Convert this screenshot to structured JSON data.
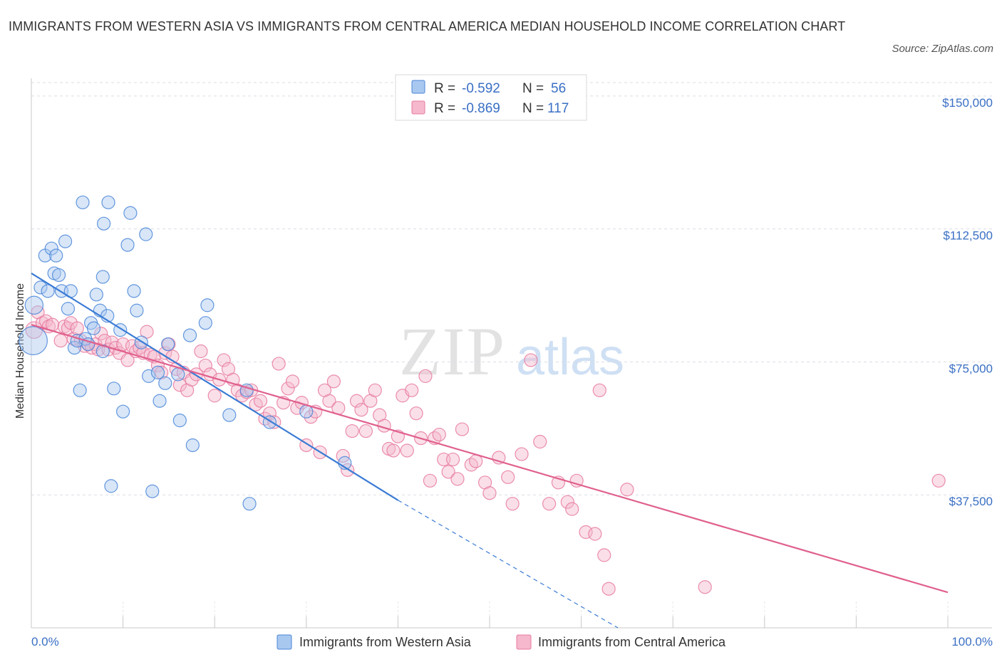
{
  "title": "IMMIGRANTS FROM WESTERN ASIA VS IMMIGRANTS FROM CENTRAL AMERICA MEDIAN HOUSEHOLD INCOME CORRELATION CHART",
  "source": "Source: ZipAtlas.com",
  "watermark": {
    "zip": "ZIP",
    "atlas": "atlas"
  },
  "colors": {
    "blue": "#4a86d8",
    "blue_fill": "#a9c8f0",
    "blue_line": "#3a7bd5",
    "pink": "#e87aa0",
    "pink_fill": "#f5b8cc",
    "pink_line": "#e0608e",
    "axis_label": "#3a6fc4",
    "grid": "#d8dde6"
  },
  "chart_data": {
    "type": "scatter",
    "xlabel": "",
    "ylabel": "Median Household Income",
    "xlim": [
      0,
      100
    ],
    "ylim": [
      0,
      155000
    ],
    "x_tick_labels": [
      "0.0%",
      "100.0%"
    ],
    "y_ticks": [
      37500,
      75000,
      112500,
      150000
    ],
    "y_tick_labels": [
      "$37,500",
      "$75,000",
      "$112,500",
      "$150,000"
    ],
    "legend_stats": [
      {
        "r_label": "R =",
        "r": "-0.592",
        "n_label": "N =",
        "n": "56",
        "series": "blue"
      },
      {
        "r_label": "R =",
        "r": "-0.869",
        "n_label": "N =",
        "n": "117",
        "series": "pink"
      }
    ],
    "series": [
      {
        "name": "Immigrants from Western Asia",
        "color": "blue",
        "trend": {
          "x0": 0,
          "y0": 100000,
          "x1": 40,
          "y1": 36000,
          "dashed_to_x": 64,
          "dashed_to_y": 0
        },
        "points": [
          [
            0.2,
            81000,
            2.2
          ],
          [
            0.3,
            91000,
            1.4
          ],
          [
            1,
            96000,
            1
          ],
          [
            1.5,
            105000,
            1
          ],
          [
            1.8,
            95000,
            1
          ],
          [
            2.2,
            107000,
            1
          ],
          [
            2.5,
            100000,
            1
          ],
          [
            2.7,
            105000,
            1
          ],
          [
            3,
            99500,
            1
          ],
          [
            3.3,
            95000,
            1
          ],
          [
            3.7,
            109000,
            1
          ],
          [
            4,
            90000,
            1
          ],
          [
            4.3,
            95000,
            1
          ],
          [
            4.7,
            79000,
            1
          ],
          [
            5,
            81000,
            1
          ],
          [
            5.3,
            67000,
            1
          ],
          [
            5.6,
            120000,
            1
          ],
          [
            5.9,
            81500,
            1
          ],
          [
            6.2,
            80000,
            1
          ],
          [
            6.5,
            86000,
            1
          ],
          [
            6.8,
            84500,
            1
          ],
          [
            7.1,
            94000,
            1
          ],
          [
            7.5,
            89500,
            1
          ],
          [
            7.8,
            78000,
            1
          ],
          [
            7.8,
            99000,
            1
          ],
          [
            7.9,
            114000,
            1
          ],
          [
            8.3,
            88000,
            1
          ],
          [
            8.4,
            120000,
            1
          ],
          [
            8.7,
            40000,
            1
          ],
          [
            9,
            67500,
            1
          ],
          [
            9.7,
            84000,
            1
          ],
          [
            10,
            61000,
            1
          ],
          [
            10.5,
            108000,
            1
          ],
          [
            10.8,
            117000,
            1
          ],
          [
            11.2,
            95000,
            1
          ],
          [
            11.5,
            89500,
            1
          ],
          [
            12,
            80500,
            1
          ],
          [
            12.5,
            111000,
            1
          ],
          [
            12.8,
            71000,
            1
          ],
          [
            13.2,
            38500,
            1
          ],
          [
            13.8,
            72000,
            1
          ],
          [
            14,
            64000,
            1
          ],
          [
            14.6,
            69000,
            1
          ],
          [
            14.9,
            80000,
            1
          ],
          [
            16,
            71500,
            1
          ],
          [
            16.2,
            58500,
            1
          ],
          [
            17.3,
            82500,
            1
          ],
          [
            17.6,
            51500,
            1
          ],
          [
            19,
            86000,
            1
          ],
          [
            19.2,
            91000,
            1
          ],
          [
            21.6,
            60000,
            1
          ],
          [
            23.5,
            67000,
            1
          ],
          [
            23.8,
            35000,
            1
          ],
          [
            26,
            58000,
            1
          ],
          [
            30,
            61000,
            1
          ],
          [
            34.2,
            46500,
            1
          ]
        ]
      },
      {
        "name": "Immigrants from Central America",
        "color": "pink",
        "trend": {
          "x0": 0,
          "y0": 85500,
          "x1": 100,
          "y1": 10000
        },
        "points": [
          [
            0.3,
            84000,
            1.3
          ],
          [
            0.7,
            89000,
            1
          ],
          [
            1.2,
            86000,
            1
          ],
          [
            1.6,
            86500,
            1
          ],
          [
            1.9,
            85000,
            1
          ],
          [
            2.3,
            85500,
            1
          ],
          [
            3.2,
            81000,
            1
          ],
          [
            3.6,
            85000,
            1
          ],
          [
            4,
            84500,
            1
          ],
          [
            4.3,
            86000,
            1
          ],
          [
            4.6,
            81500,
            1
          ],
          [
            5,
            84500,
            1
          ],
          [
            5.4,
            81000,
            1
          ],
          [
            5.8,
            79500,
            1
          ],
          [
            6.2,
            80000,
            1
          ],
          [
            6.6,
            79000,
            1
          ],
          [
            7,
            80000,
            1
          ],
          [
            7.3,
            78500,
            1
          ],
          [
            7.6,
            83000,
            1
          ],
          [
            8,
            81000,
            1
          ],
          [
            8.4,
            78500,
            1
          ],
          [
            8.8,
            80500,
            1
          ],
          [
            9.2,
            79000,
            1
          ],
          [
            9.6,
            77500,
            1
          ],
          [
            10,
            80000,
            1
          ],
          [
            10.5,
            75500,
            1
          ],
          [
            11,
            79500,
            1
          ],
          [
            11.4,
            78000,
            1
          ],
          [
            11.8,
            79000,
            1
          ],
          [
            12.2,
            77500,
            1
          ],
          [
            12.6,
            83500,
            1
          ],
          [
            13,
            77000,
            1
          ],
          [
            13.4,
            76500,
            1
          ],
          [
            13.8,
            74000,
            1
          ],
          [
            14.2,
            72000,
            1
          ],
          [
            14.6,
            77500,
            1
          ],
          [
            15,
            80000,
            1
          ],
          [
            15.4,
            76500,
            1
          ],
          [
            15.8,
            73000,
            1
          ],
          [
            16.2,
            68500,
            1
          ],
          [
            16.6,
            72000,
            1
          ],
          [
            17,
            67000,
            1
          ],
          [
            17.5,
            70000,
            1
          ],
          [
            18,
            71500,
            1
          ],
          [
            18.5,
            78000,
            1
          ],
          [
            19,
            74000,
            1
          ],
          [
            19.5,
            71500,
            1
          ],
          [
            20,
            65500,
            1
          ],
          [
            20.5,
            70000,
            1
          ],
          [
            21,
            75500,
            1
          ],
          [
            21.5,
            73000,
            1
          ],
          [
            22,
            70000,
            1
          ],
          [
            22.5,
            67000,
            1
          ],
          [
            23,
            65500,
            1
          ],
          [
            23.5,
            66500,
            1
          ],
          [
            24,
            67000,
            1
          ],
          [
            24.5,
            63000,
            1
          ],
          [
            25,
            64000,
            1
          ],
          [
            25.5,
            59000,
            1
          ],
          [
            26,
            60500,
            1
          ],
          [
            26.5,
            58000,
            1
          ],
          [
            27,
            74500,
            1
          ],
          [
            27.5,
            63500,
            1
          ],
          [
            28,
            67500,
            1
          ],
          [
            28.5,
            69500,
            1
          ],
          [
            29,
            62000,
            1
          ],
          [
            29.5,
            63500,
            1
          ],
          [
            30,
            51500,
            1
          ],
          [
            30.5,
            59500,
            1
          ],
          [
            31,
            61000,
            1
          ],
          [
            31.5,
            49500,
            1
          ],
          [
            32,
            67000,
            1
          ],
          [
            32.5,
            64000,
            1
          ],
          [
            33,
            69500,
            1
          ],
          [
            33.5,
            62000,
            1
          ],
          [
            34,
            48500,
            1
          ],
          [
            34.5,
            44500,
            1
          ],
          [
            35,
            55500,
            1
          ],
          [
            35.5,
            64000,
            1
          ],
          [
            36,
            61500,
            1
          ],
          [
            36.5,
            55500,
            1
          ],
          [
            37,
            64000,
            1
          ],
          [
            37.5,
            67000,
            1
          ],
          [
            38,
            60000,
            1
          ],
          [
            38.5,
            57000,
            1
          ],
          [
            39,
            50500,
            1
          ],
          [
            39.5,
            50000,
            1
          ],
          [
            40,
            54000,
            1
          ],
          [
            40.5,
            65500,
            1
          ],
          [
            41,
            50000,
            1
          ],
          [
            41.5,
            67000,
            1
          ],
          [
            42,
            60500,
            1
          ],
          [
            42.5,
            53500,
            1
          ],
          [
            43,
            71000,
            1
          ],
          [
            43.5,
            41500,
            1
          ],
          [
            44,
            53500,
            1
          ],
          [
            44.5,
            54500,
            1
          ],
          [
            45,
            47500,
            1
          ],
          [
            45.5,
            44000,
            1
          ],
          [
            46,
            47500,
            1
          ],
          [
            46.5,
            42000,
            1
          ],
          [
            47,
            56000,
            1
          ],
          [
            48,
            46000,
            1
          ],
          [
            48.5,
            47000,
            1
          ],
          [
            49.5,
            41000,
            1
          ],
          [
            50,
            38000,
            1
          ],
          [
            51,
            48000,
            1
          ],
          [
            52,
            42500,
            1
          ],
          [
            52.5,
            35000,
            1
          ],
          [
            53.5,
            49000,
            1
          ],
          [
            54.5,
            75500,
            1
          ],
          [
            55.5,
            52500,
            1
          ],
          [
            56.5,
            35000,
            1
          ],
          [
            57.5,
            41000,
            1
          ],
          [
            58.5,
            35500,
            1
          ],
          [
            59,
            33500,
            1
          ],
          [
            59.5,
            41500,
            1
          ],
          [
            60.5,
            27000,
            1
          ],
          [
            61.5,
            26500,
            1
          ],
          [
            62,
            67000,
            1
          ],
          [
            62.5,
            20500,
            1
          ],
          [
            63,
            11000,
            1
          ],
          [
            65,
            39000,
            1
          ],
          [
            73.5,
            11500,
            1
          ],
          [
            99,
            41500,
            1
          ]
        ]
      }
    ],
    "legend": [
      {
        "label": "Immigrants from Western Asia",
        "color": "blue"
      },
      {
        "label": "Immigrants from Central America",
        "color": "pink"
      }
    ]
  }
}
